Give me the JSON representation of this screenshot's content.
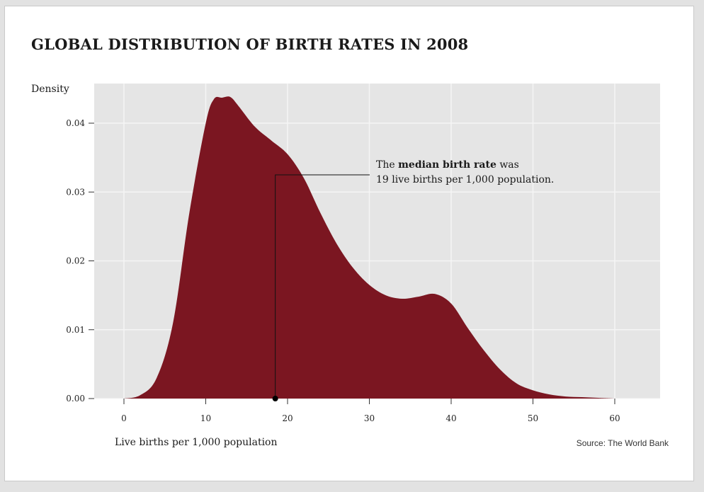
{
  "colors": {
    "fill": "#7b1621",
    "plot_background": "#e5e5e5",
    "grid": "#f5f5f5",
    "text": "#1a1a1a"
  },
  "chart_data": {
    "type": "area",
    "title": "GLOBAL DISTRIBUTION OF BIRTH RATES IN 2008",
    "xlabel": "Live births per 1,000 population",
    "ylabel": "Density",
    "xlim": [
      -4,
      63
    ],
    "ylim": [
      0,
      0.0455
    ],
    "xticks": [
      0,
      10,
      20,
      30,
      40,
      50,
      60
    ],
    "yticks": [
      0.0,
      0.01,
      0.02,
      0.03,
      0.04
    ],
    "ytick_labels": [
      "0.00",
      "0.01",
      "0.02",
      "0.03",
      "0.04"
    ],
    "grid": true,
    "series": [
      {
        "x": [
          0,
          2,
          4,
          6,
          8,
          10,
          11,
          12,
          13,
          14,
          16,
          18,
          20,
          22,
          24,
          26,
          28,
          30,
          32,
          34,
          36,
          38,
          40,
          42,
          44,
          46,
          48,
          50,
          52,
          54,
          56,
          58,
          60
        ],
        "y": [
          0.0,
          0.0005,
          0.003,
          0.011,
          0.027,
          0.04,
          0.0435,
          0.0437,
          0.0438,
          0.0425,
          0.0395,
          0.0375,
          0.0355,
          0.032,
          0.027,
          0.0225,
          0.019,
          0.0165,
          0.015,
          0.0145,
          0.0148,
          0.0152,
          0.0138,
          0.0103,
          0.007,
          0.0042,
          0.0022,
          0.0012,
          0.0006,
          0.0003,
          0.0002,
          0.0001,
          0.0
        ]
      }
    ],
    "median": {
      "x": 18.5,
      "label": "19 live births per 1,000 population."
    },
    "annotation": {
      "line1_before": "The ",
      "line1_bold": "median birth rate",
      "line1_after": " was",
      "line2": "19 live births per 1,000 population."
    },
    "source": "Source: The World Bank"
  }
}
